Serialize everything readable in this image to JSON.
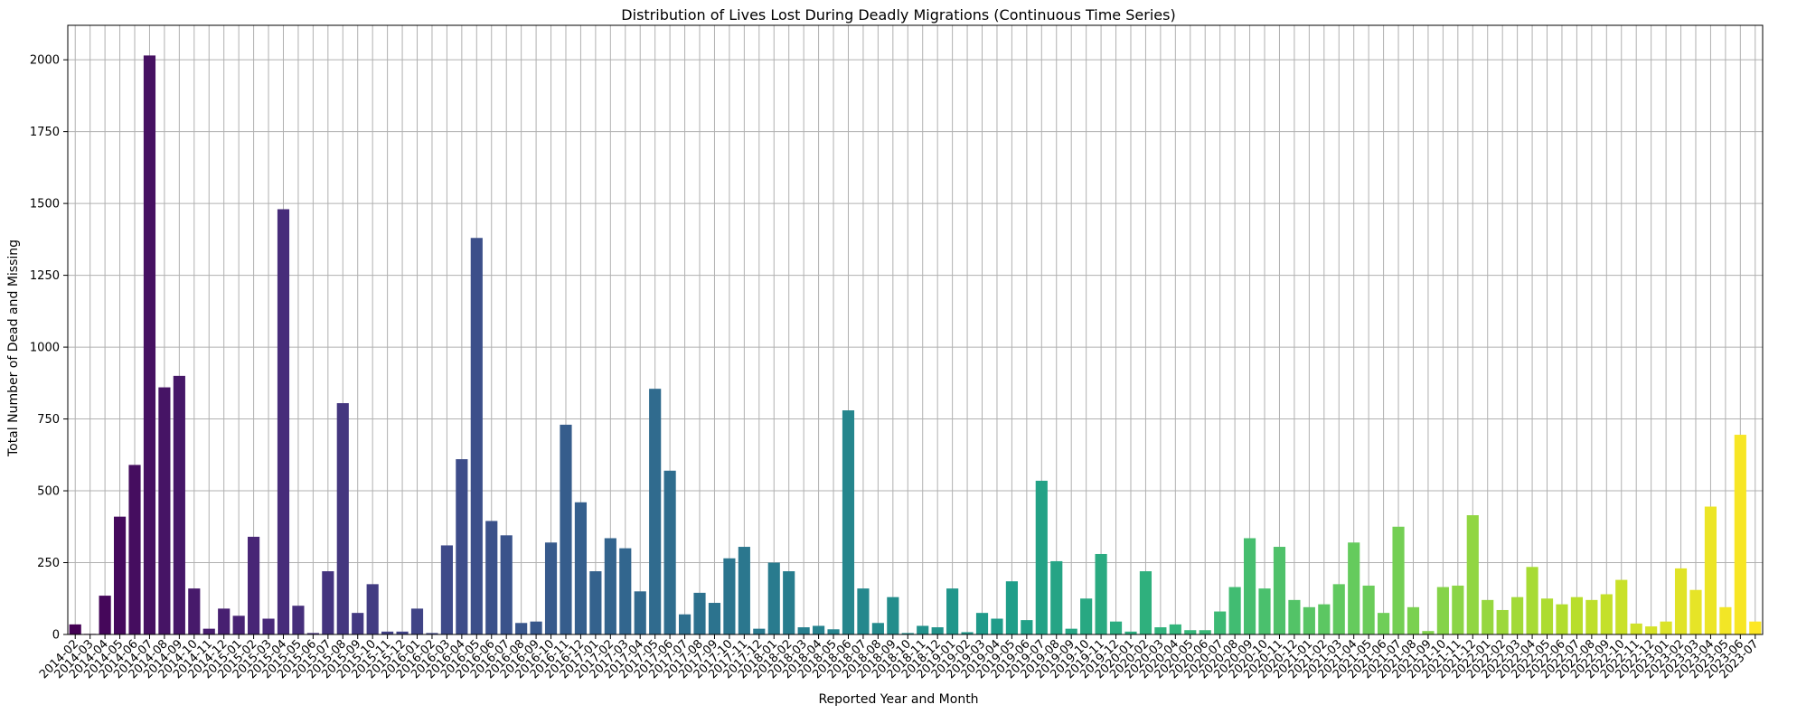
{
  "chart_data": {
    "type": "bar",
    "title": "Distribution of Lives Lost During Deadly Migrations (Continuous Time Series)",
    "xlabel": "Reported Year and Month",
    "ylabel": "Total Number of Dead and Missing",
    "ylim": [
      0,
      2120
    ],
    "yticks": [
      0,
      250,
      500,
      750,
      1000,
      1250,
      1500,
      1750,
      2000
    ],
    "grid": true,
    "colormap": "viridis",
    "categories": [
      "2014-02",
      "2014-03",
      "2014-04",
      "2014-05",
      "2014-06",
      "2014-07",
      "2014-08",
      "2014-09",
      "2014-10",
      "2014-11",
      "2014-12",
      "2015-01",
      "2015-02",
      "2015-03",
      "2015-04",
      "2015-05",
      "2015-06",
      "2015-07",
      "2015-08",
      "2015-09",
      "2015-10",
      "2015-11",
      "2015-12",
      "2016-01",
      "2016-02",
      "2016-03",
      "2016-04",
      "2016-05",
      "2016-06",
      "2016-07",
      "2016-08",
      "2016-09",
      "2016-10",
      "2016-11",
      "2016-12",
      "2017-01",
      "2017-02",
      "2017-03",
      "2017-04",
      "2017-05",
      "2017-06",
      "2017-07",
      "2017-08",
      "2017-09",
      "2017-10",
      "2017-11",
      "2017-12",
      "2018-01",
      "2018-02",
      "2018-03",
      "2018-04",
      "2018-05",
      "2018-06",
      "2018-07",
      "2018-08",
      "2018-09",
      "2018-10",
      "2018-11",
      "2018-12",
      "2019-01",
      "2019-02",
      "2019-03",
      "2019-04",
      "2019-05",
      "2019-06",
      "2019-07",
      "2019-08",
      "2019-09",
      "2019-10",
      "2019-11",
      "2019-12",
      "2020-01",
      "2020-02",
      "2020-03",
      "2020-04",
      "2020-05",
      "2020-06",
      "2020-07",
      "2020-08",
      "2020-09",
      "2020-10",
      "2020-11",
      "2020-12",
      "2021-01",
      "2021-02",
      "2021-03",
      "2021-04",
      "2021-05",
      "2021-06",
      "2021-07",
      "2021-08",
      "2021-09",
      "2021-10",
      "2021-11",
      "2021-12",
      "2022-01",
      "2022-02",
      "2022-03",
      "2022-04",
      "2022-05",
      "2022-06",
      "2022-07",
      "2022-08",
      "2022-09",
      "2022-10",
      "2022-11",
      "2022-12",
      "2023-01",
      "2023-02",
      "2023-03",
      "2023-04",
      "2023-05",
      "2023-06",
      "2023-07"
    ],
    "values": [
      35,
      2,
      135,
      410,
      590,
      2015,
      860,
      900,
      160,
      20,
      90,
      65,
      340,
      55,
      1480,
      100,
      5,
      220,
      805,
      75,
      175,
      10,
      10,
      90,
      5,
      310,
      610,
      1380,
      395,
      345,
      40,
      45,
      320,
      730,
      460,
      220,
      335,
      300,
      150,
      855,
      570,
      70,
      145,
      110,
      265,
      305,
      20,
      250,
      220,
      25,
      30,
      18,
      780,
      160,
      40,
      130,
      5,
      30,
      25,
      160,
      8,
      75,
      55,
      185,
      50,
      535,
      255,
      20,
      125,
      280,
      45,
      10,
      220,
      25,
      35,
      15,
      15,
      80,
      165,
      335,
      160,
      305,
      120,
      95,
      105,
      175,
      320,
      170,
      75,
      375,
      95,
      12,
      165,
      170,
      415,
      120,
      85,
      130,
      235,
      125,
      105,
      130,
      120,
      140,
      190,
      38,
      28,
      45,
      230,
      155,
      445,
      95,
      695,
      45
    ]
  }
}
